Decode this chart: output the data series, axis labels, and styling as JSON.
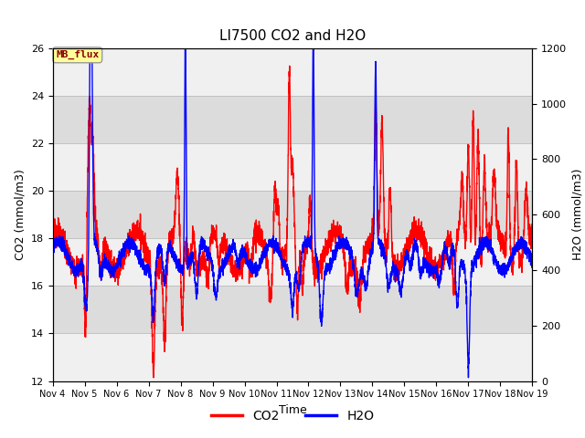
{
  "title": "LI7500 CO2 and H2O",
  "xlabel": "Time",
  "ylabel_left": "CO2 (mmol/m3)",
  "ylabel_right": "H2O (mmol/m3)",
  "xlim_days": [
    4,
    19
  ],
  "ylim_left": [
    12,
    26
  ],
  "ylim_right": [
    0,
    1200
  ],
  "yticks_left": [
    12,
    14,
    16,
    18,
    20,
    22,
    24,
    26
  ],
  "yticks_right": [
    0,
    200,
    400,
    600,
    800,
    1000,
    1200
  ],
  "xtick_labels": [
    "Nov 4",
    "Nov 5",
    "Nov 6",
    "Nov 7",
    "Nov 8",
    "Nov 9",
    "Nov 10",
    "Nov 11",
    "Nov 12",
    "Nov 13",
    "Nov 14",
    "Nov 15",
    "Nov 16",
    "Nov 17",
    "Nov 18",
    "Nov 19"
  ],
  "xtick_positions": [
    4,
    5,
    6,
    7,
    8,
    9,
    10,
    11,
    12,
    13,
    14,
    15,
    16,
    17,
    18,
    19
  ],
  "co2_color": "#FF0000",
  "h2o_color": "#0000FF",
  "grid_color": "#BBBBBB",
  "bg_color_dark": "#DCDCDC",
  "bg_color_light": "#F0F0F0",
  "annotation_text": "MB_flux",
  "annotation_bg": "#FFFF99",
  "annotation_border": "#AAAAAA",
  "legend_labels": [
    "CO2",
    "H2O"
  ],
  "linewidth": 1.0
}
